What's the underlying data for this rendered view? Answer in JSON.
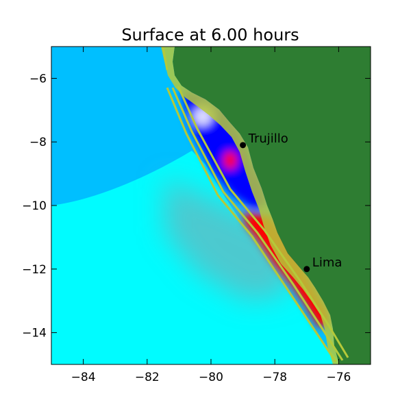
{
  "title": "Surface at 6.00 hours",
  "chart_data": {
    "type": "heatmap",
    "title": "Surface at 6.00 hours",
    "xlabel": "",
    "ylabel": "",
    "xlim": [
      -85,
      -75
    ],
    "ylim": [
      -15,
      -5
    ],
    "x_ticks": [
      -84,
      -82,
      -80,
      -78,
      -76
    ],
    "y_ticks": [
      -6,
      -8,
      -10,
      -12,
      -14
    ],
    "x_tick_labels": [
      "−84",
      "−82",
      "−80",
      "−78",
      "−76"
    ],
    "y_tick_labels": [
      "−6",
      "−8",
      "−10",
      "−12",
      "−14"
    ],
    "locations": [
      {
        "name": "Trujillo",
        "lon": -79.0,
        "lat": -8.1
      },
      {
        "name": "Lima",
        "lon": -77.0,
        "lat": -12.0
      }
    ],
    "colors": {
      "land": "#2e7d32",
      "deep_ocean": "#00bfff",
      "shelf_ocean": "#00ffff",
      "depression": "#0000ff",
      "elevation": "#ff0000",
      "contour": "#b5c93a"
    }
  }
}
